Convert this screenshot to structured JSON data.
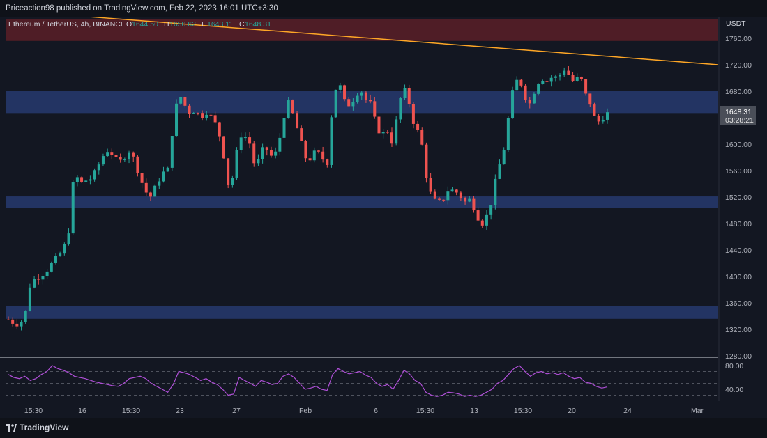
{
  "header": {
    "publish_text": "Priceaction98 published on TradingView.com, Feb 22, 2023 16:01 UTC+3:30"
  },
  "symbol": {
    "name": "Ethereum / TetherUS, 4h, BINANCE",
    "ohlc": [
      {
        "key": "O",
        "value": "1644.50",
        "color": "#26a69a"
      },
      {
        "key": "H",
        "value": "1650.62",
        "color": "#26a69a"
      },
      {
        "key": "L",
        "value": "1643.11",
        "color": "#26a69a"
      },
      {
        "key": "C",
        "value": "1648.31",
        "color": "#26a69a"
      }
    ]
  },
  "price_axis": {
    "currency": "USDT",
    "ticks": [
      "1760.00",
      "1720.00",
      "1680.00",
      "1640.00",
      "1600.00",
      "1560.00",
      "1520.00",
      "1480.00",
      "1440.00",
      "1400.00",
      "1360.00",
      "1320.00",
      "1280.00"
    ],
    "current_price": "1648.31",
    "countdown": "03:28:21"
  },
  "rsi_axis": {
    "ticks": [
      "80.00",
      "40.00"
    ]
  },
  "time_axis": {
    "labels": [
      "15:30",
      "16",
      "15:30",
      "23",
      "27",
      "Feb",
      "6",
      "15:30",
      "13",
      "15:30",
      "20",
      "24",
      "Mar"
    ]
  },
  "footer": {
    "brand": "TradingView"
  },
  "colors": {
    "background": "#131722",
    "bull": "#26a69a",
    "bear": "#ef5350",
    "zone_blue": "#2a3f7a",
    "zone_red": "#5a1f27",
    "trendline": "#ffa726",
    "rsi_line": "#b050d8"
  },
  "chart_data": {
    "type": "candlestick",
    "title": "Ethereum / TetherUS, 4h, BINANCE",
    "y_unit": "USDT",
    "ylim": [
      1280,
      1780
    ],
    "zones": [
      {
        "type": "resistance",
        "from": 1756,
        "to": 1790,
        "color": "red"
      },
      {
        "type": "supply",
        "from": 1647,
        "to": 1680,
        "color": "blue"
      },
      {
        "type": "demand",
        "from": 1504,
        "to": 1521,
        "color": "blue"
      },
      {
        "type": "demand",
        "from": 1336,
        "to": 1355,
        "color": "blue"
      }
    ],
    "trendline": {
      "start": 1798,
      "end": 1720
    },
    "price_path": [
      1335,
      1330,
      1328,
      1340,
      1390,
      1398,
      1402,
      1410,
      1420,
      1430,
      1440,
      1470,
      1560,
      1540,
      1545,
      1548,
      1560,
      1580,
      1590,
      1585,
      1570,
      1580,
      1590,
      1575,
      1548,
      1528,
      1520,
      1540,
      1556,
      1560,
      1630,
      1678,
      1660,
      1648,
      1652,
      1640,
      1650,
      1640,
      1626,
      1594,
      1540,
      1552,
      1615,
      1612,
      1600,
      1560,
      1590,
      1592,
      1580,
      1590,
      1640,
      1662,
      1640,
      1610,
      1580,
      1578,
      1590,
      1580,
      1570,
      1660,
      1700,
      1665,
      1660,
      1670,
      1685,
      1668,
      1660,
      1625,
      1615,
      1620,
      1600,
      1660,
      1684,
      1660,
      1624,
      1615,
      1555,
      1520,
      1510,
      1515,
      1530,
      1530,
      1525,
      1512,
      1516,
      1500,
      1478,
      1490,
      1515,
      1560,
      1582,
      1640,
      1690,
      1700,
      1672,
      1660,
      1690,
      1700,
      1695,
      1702,
      1700,
      1715,
      1705,
      1692,
      1705,
      1675,
      1660,
      1630,
      1640,
      1648
    ],
    "rsi": {
      "ylim": [
        20,
        90
      ],
      "levels": [
        70,
        50,
        30
      ],
      "path": [
        65,
        60,
        58,
        62,
        55,
        58,
        65,
        70,
        80,
        75,
        72,
        68,
        62,
        60,
        58,
        55,
        52,
        50,
        48,
        46,
        45,
        50,
        58,
        60,
        62,
        58,
        50,
        45,
        40,
        35,
        48,
        70,
        68,
        65,
        60,
        55,
        58,
        52,
        48,
        40,
        30,
        32,
        60,
        55,
        50,
        45,
        55,
        52,
        48,
        50,
        62,
        66,
        60,
        50,
        40,
        42,
        45,
        40,
        38,
        65,
        75,
        70,
        66,
        68,
        70,
        64,
        60,
        50,
        45,
        48,
        40,
        55,
        72,
        66,
        55,
        50,
        35,
        30,
        28,
        30,
        35,
        34,
        32,
        28,
        30,
        28,
        30,
        35,
        40,
        50,
        55,
        65,
        75,
        80,
        70,
        62,
        68,
        70,
        66,
        68,
        65,
        68,
        62,
        58,
        60,
        52,
        50,
        45,
        42,
        44
      ]
    }
  }
}
